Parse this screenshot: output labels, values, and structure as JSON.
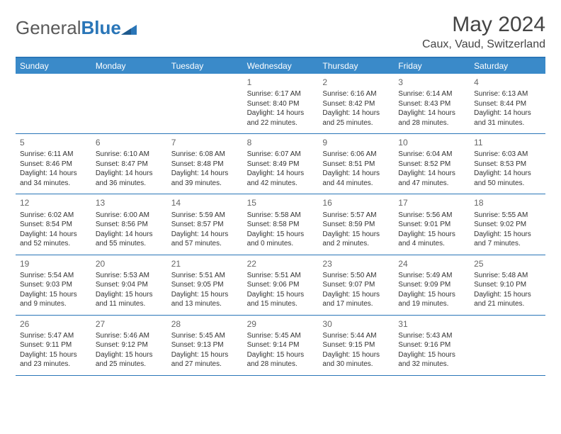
{
  "brand": {
    "part1": "General",
    "part2": "Blue"
  },
  "title": "May 2024",
  "location": "Caux, Vaud, Switzerland",
  "header_bg": "#3a8ac9",
  "border_color": "#2a76b8",
  "weekdays": [
    "Sunday",
    "Monday",
    "Tuesday",
    "Wednesday",
    "Thursday",
    "Friday",
    "Saturday"
  ],
  "weeks": [
    [
      {
        "day": "",
        "sunrise": "",
        "sunset": "",
        "daylight": ""
      },
      {
        "day": "",
        "sunrise": "",
        "sunset": "",
        "daylight": ""
      },
      {
        "day": "",
        "sunrise": "",
        "sunset": "",
        "daylight": ""
      },
      {
        "day": "1",
        "sunrise": "Sunrise: 6:17 AM",
        "sunset": "Sunset: 8:40 PM",
        "daylight": "Daylight: 14 hours and 22 minutes."
      },
      {
        "day": "2",
        "sunrise": "Sunrise: 6:16 AM",
        "sunset": "Sunset: 8:42 PM",
        "daylight": "Daylight: 14 hours and 25 minutes."
      },
      {
        "day": "3",
        "sunrise": "Sunrise: 6:14 AM",
        "sunset": "Sunset: 8:43 PM",
        "daylight": "Daylight: 14 hours and 28 minutes."
      },
      {
        "day": "4",
        "sunrise": "Sunrise: 6:13 AM",
        "sunset": "Sunset: 8:44 PM",
        "daylight": "Daylight: 14 hours and 31 minutes."
      }
    ],
    [
      {
        "day": "5",
        "sunrise": "Sunrise: 6:11 AM",
        "sunset": "Sunset: 8:46 PM",
        "daylight": "Daylight: 14 hours and 34 minutes."
      },
      {
        "day": "6",
        "sunrise": "Sunrise: 6:10 AM",
        "sunset": "Sunset: 8:47 PM",
        "daylight": "Daylight: 14 hours and 36 minutes."
      },
      {
        "day": "7",
        "sunrise": "Sunrise: 6:08 AM",
        "sunset": "Sunset: 8:48 PM",
        "daylight": "Daylight: 14 hours and 39 minutes."
      },
      {
        "day": "8",
        "sunrise": "Sunrise: 6:07 AM",
        "sunset": "Sunset: 8:49 PM",
        "daylight": "Daylight: 14 hours and 42 minutes."
      },
      {
        "day": "9",
        "sunrise": "Sunrise: 6:06 AM",
        "sunset": "Sunset: 8:51 PM",
        "daylight": "Daylight: 14 hours and 44 minutes."
      },
      {
        "day": "10",
        "sunrise": "Sunrise: 6:04 AM",
        "sunset": "Sunset: 8:52 PM",
        "daylight": "Daylight: 14 hours and 47 minutes."
      },
      {
        "day": "11",
        "sunrise": "Sunrise: 6:03 AM",
        "sunset": "Sunset: 8:53 PM",
        "daylight": "Daylight: 14 hours and 50 minutes."
      }
    ],
    [
      {
        "day": "12",
        "sunrise": "Sunrise: 6:02 AM",
        "sunset": "Sunset: 8:54 PM",
        "daylight": "Daylight: 14 hours and 52 minutes."
      },
      {
        "day": "13",
        "sunrise": "Sunrise: 6:00 AM",
        "sunset": "Sunset: 8:56 PM",
        "daylight": "Daylight: 14 hours and 55 minutes."
      },
      {
        "day": "14",
        "sunrise": "Sunrise: 5:59 AM",
        "sunset": "Sunset: 8:57 PM",
        "daylight": "Daylight: 14 hours and 57 minutes."
      },
      {
        "day": "15",
        "sunrise": "Sunrise: 5:58 AM",
        "sunset": "Sunset: 8:58 PM",
        "daylight": "Daylight: 15 hours and 0 minutes."
      },
      {
        "day": "16",
        "sunrise": "Sunrise: 5:57 AM",
        "sunset": "Sunset: 8:59 PM",
        "daylight": "Daylight: 15 hours and 2 minutes."
      },
      {
        "day": "17",
        "sunrise": "Sunrise: 5:56 AM",
        "sunset": "Sunset: 9:01 PM",
        "daylight": "Daylight: 15 hours and 4 minutes."
      },
      {
        "day": "18",
        "sunrise": "Sunrise: 5:55 AM",
        "sunset": "Sunset: 9:02 PM",
        "daylight": "Daylight: 15 hours and 7 minutes."
      }
    ],
    [
      {
        "day": "19",
        "sunrise": "Sunrise: 5:54 AM",
        "sunset": "Sunset: 9:03 PM",
        "daylight": "Daylight: 15 hours and 9 minutes."
      },
      {
        "day": "20",
        "sunrise": "Sunrise: 5:53 AM",
        "sunset": "Sunset: 9:04 PM",
        "daylight": "Daylight: 15 hours and 11 minutes."
      },
      {
        "day": "21",
        "sunrise": "Sunrise: 5:51 AM",
        "sunset": "Sunset: 9:05 PM",
        "daylight": "Daylight: 15 hours and 13 minutes."
      },
      {
        "day": "22",
        "sunrise": "Sunrise: 5:51 AM",
        "sunset": "Sunset: 9:06 PM",
        "daylight": "Daylight: 15 hours and 15 minutes."
      },
      {
        "day": "23",
        "sunrise": "Sunrise: 5:50 AM",
        "sunset": "Sunset: 9:07 PM",
        "daylight": "Daylight: 15 hours and 17 minutes."
      },
      {
        "day": "24",
        "sunrise": "Sunrise: 5:49 AM",
        "sunset": "Sunset: 9:09 PM",
        "daylight": "Daylight: 15 hours and 19 minutes."
      },
      {
        "day": "25",
        "sunrise": "Sunrise: 5:48 AM",
        "sunset": "Sunset: 9:10 PM",
        "daylight": "Daylight: 15 hours and 21 minutes."
      }
    ],
    [
      {
        "day": "26",
        "sunrise": "Sunrise: 5:47 AM",
        "sunset": "Sunset: 9:11 PM",
        "daylight": "Daylight: 15 hours and 23 minutes."
      },
      {
        "day": "27",
        "sunrise": "Sunrise: 5:46 AM",
        "sunset": "Sunset: 9:12 PM",
        "daylight": "Daylight: 15 hours and 25 minutes."
      },
      {
        "day": "28",
        "sunrise": "Sunrise: 5:45 AM",
        "sunset": "Sunset: 9:13 PM",
        "daylight": "Daylight: 15 hours and 27 minutes."
      },
      {
        "day": "29",
        "sunrise": "Sunrise: 5:45 AM",
        "sunset": "Sunset: 9:14 PM",
        "daylight": "Daylight: 15 hours and 28 minutes."
      },
      {
        "day": "30",
        "sunrise": "Sunrise: 5:44 AM",
        "sunset": "Sunset: 9:15 PM",
        "daylight": "Daylight: 15 hours and 30 minutes."
      },
      {
        "day": "31",
        "sunrise": "Sunrise: 5:43 AM",
        "sunset": "Sunset: 9:16 PM",
        "daylight": "Daylight: 15 hours and 32 minutes."
      },
      {
        "day": "",
        "sunrise": "",
        "sunset": "",
        "daylight": ""
      }
    ]
  ]
}
